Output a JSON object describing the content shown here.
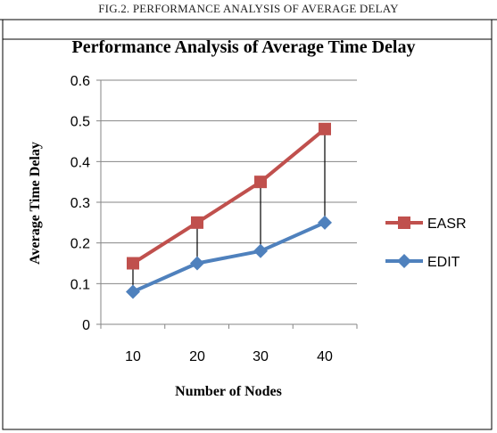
{
  "caption": "FIG.2. PERFORMANCE ANALYSIS OF AVERAGE DELAY",
  "colors": {
    "easr": "#c0504d",
    "edit": "#4f81bd",
    "grid": "#868686",
    "droplines": "#000000"
  },
  "chart_data": {
    "type": "line",
    "title": "Performance Analysis of Average Time Delay",
    "xlabel": "Number of Nodes",
    "ylabel": "Average Time Delay",
    "categories": [
      "10",
      "20",
      "30",
      "40"
    ],
    "yticks": [
      "0",
      "0.1",
      "0.2",
      "0.3",
      "0.4",
      "0.5",
      "0.6"
    ],
    "ylim": [
      0,
      0.6
    ],
    "grid": true,
    "drop_lines": true,
    "legend_position": "right",
    "series": [
      {
        "name": "EASR",
        "values": [
          0.15,
          0.25,
          0.35,
          0.48
        ],
        "marker": "square"
      },
      {
        "name": "EDIT",
        "values": [
          0.08,
          0.15,
          0.18,
          0.25
        ],
        "marker": "diamond"
      }
    ]
  }
}
